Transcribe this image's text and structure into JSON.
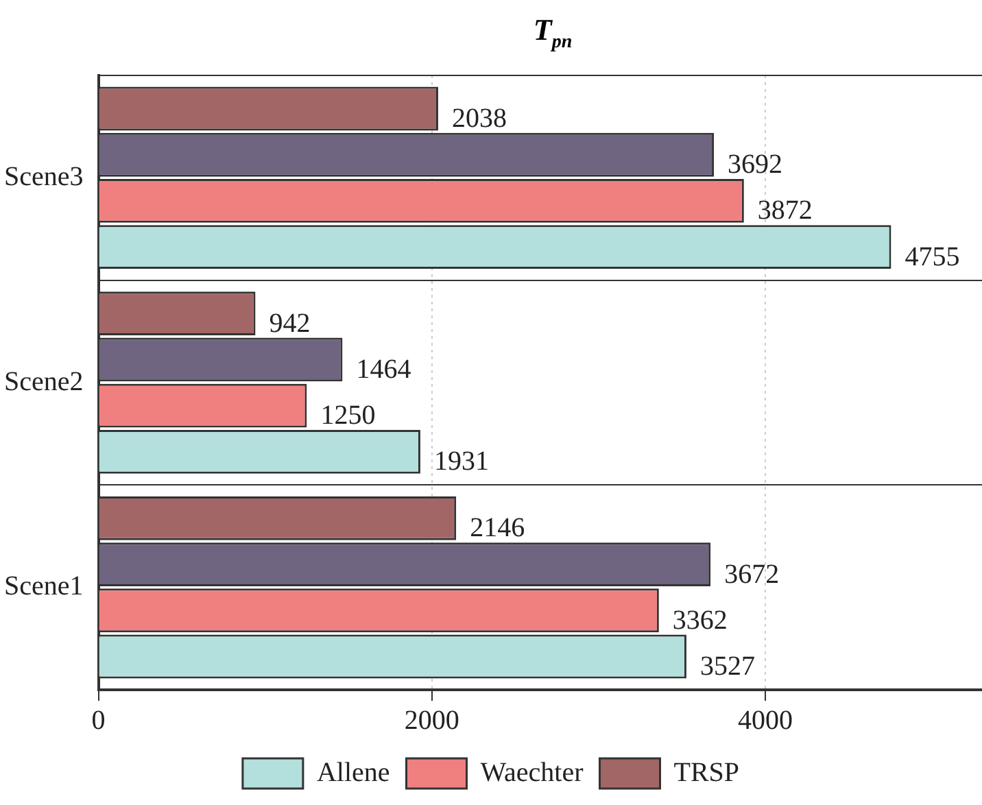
{
  "chart_data": {
    "type": "bar",
    "orientation": "horizontal",
    "title": "T$_{pn}$",
    "categories": [
      "Scene3",
      "Scene2",
      "Scene1"
    ],
    "series": [
      {
        "name": "Allene",
        "color": "#b3e0dc",
        "values": [
          4755,
          1931,
          3527
        ]
      },
      {
        "name": "Waechter",
        "color": "#f08080",
        "values": [
          3872,
          1250,
          3362
        ]
      },
      {
        "color": "#6f6580",
        "values": [
          3692,
          1464,
          3672
        ]
      },
      {
        "name": "TRSP",
        "color": "#a36666",
        "values": [
          2038,
          942,
          2146
        ]
      }
    ],
    "xlim": [
      0,
      5300
    ],
    "xticks": [
      0,
      2000,
      4000
    ],
    "data_labels": true,
    "grid": true,
    "legend": "bottom"
  }
}
